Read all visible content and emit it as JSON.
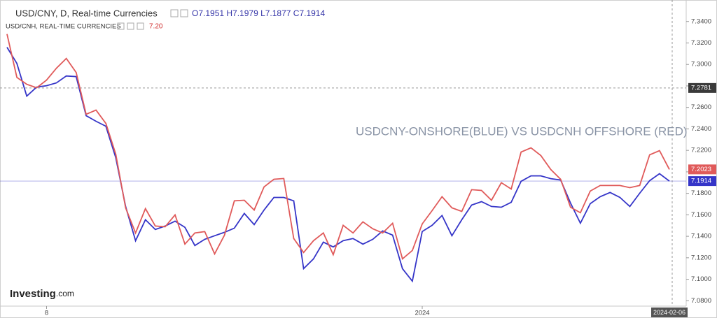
{
  "chart_data": {
    "type": "line",
    "annotation": "USDCNY-ONSHORE(BLUE) VS USDCNH OFFSHORE (RED)",
    "logo": {
      "name": "Investing",
      "suffix": ".com"
    },
    "categories": [
      null,
      null,
      null,
      null,
      "8",
      null,
      null,
      null,
      null,
      null,
      null,
      null,
      null,
      null,
      null,
      null,
      null,
      null,
      null,
      null,
      null,
      null,
      null,
      null,
      null,
      null,
      null,
      null,
      null,
      null,
      null,
      null,
      null,
      null,
      null,
      null,
      null,
      null,
      null,
      null,
      null,
      null,
      "2024",
      null,
      null,
      null,
      null,
      null,
      null,
      null,
      null,
      null,
      null,
      null,
      null,
      null,
      null,
      null,
      null,
      null,
      null,
      null,
      null,
      null,
      null,
      null,
      null,
      "2024-02-06"
    ],
    "series": [
      {
        "name": "USD/CNY, D, Real-time Currencies",
        "ohlc": "O7.1951  H7.1979  L7.1877  C7.1914",
        "color": "#3535c8",
        "values": [
          7.316,
          7.301,
          7.2705,
          7.2789,
          7.2802,
          7.2828,
          7.2893,
          7.2887,
          7.2523,
          7.2471,
          7.2425,
          7.2133,
          7.1678,
          7.1359,
          7.1554,
          7.1463,
          7.1496,
          7.1541,
          7.1483,
          7.1314,
          7.1372,
          7.1405,
          7.1437,
          7.1476,
          7.1613,
          7.1509,
          7.1645,
          7.1762,
          7.1762,
          7.173,
          7.1099,
          7.119,
          7.1346,
          7.1301,
          7.1359,
          7.1379,
          7.1327,
          7.1372,
          7.145,
          7.1411,
          7.1099,
          7.0982,
          7.1444,
          7.1502,
          7.1593,
          7.1405,
          7.1554,
          7.1691,
          7.1723,
          7.1678,
          7.1671,
          7.1717,
          7.1912,
          7.1963,
          7.1963,
          7.1937,
          7.1924,
          7.171,
          7.1522,
          7.1704,
          7.1769,
          7.1808,
          7.1762,
          7.1678,
          7.1801,
          7.1918,
          7.1983,
          7.1914
        ]
      },
      {
        "name": "USD/CNH, REAL-TIME CURRENCIES",
        "ohlc": "7.20",
        "color": "#e05a5a",
        "values": [
          7.3283,
          7.288,
          7.2815,
          7.2783,
          7.2854,
          7.2965,
          7.3056,
          7.2925,
          7.2536,
          7.2575,
          7.2451,
          7.2165,
          7.1665,
          7.1431,
          7.1658,
          7.1496,
          7.1489,
          7.16,
          7.1327,
          7.1431,
          7.1444,
          7.1236,
          7.1411,
          7.173,
          7.1736,
          7.1645,
          7.186,
          7.1931,
          7.1938,
          7.1379,
          7.1249,
          7.1359,
          7.1431,
          7.1229,
          7.1502,
          7.1431,
          7.1535,
          7.147,
          7.1431,
          7.1522,
          7.119,
          7.1268,
          7.1515,
          7.1639,
          7.1769,
          7.1665,
          7.1632,
          7.1834,
          7.1827,
          7.1736,
          7.1899,
          7.184,
          7.2185,
          7.2224,
          7.2152,
          7.2022,
          7.1931,
          7.1671,
          7.1619,
          7.1821,
          7.1873,
          7.1873,
          7.1873,
          7.1853,
          7.1873,
          7.2159,
          7.2198,
          7.2023
        ]
      }
    ],
    "crosshair": {
      "value": 7.2781,
      "label": "7.2781"
    },
    "ylim": [
      7.075,
      7.36
    ],
    "yticks": [
      {
        "value": 7.34,
        "label": "7.3400"
      },
      {
        "value": 7.32,
        "label": "7.3200"
      },
      {
        "value": 7.3,
        "label": "7.3000"
      },
      {
        "value": 7.28,
        "label": "7.2800"
      },
      {
        "value": 7.26,
        "label": "7.2600"
      },
      {
        "value": 7.24,
        "label": "7.2400"
      },
      {
        "value": 7.22,
        "label": "7.2200"
      },
      {
        "value": 7.2,
        "label": "7.2000"
      },
      {
        "value": 7.18,
        "label": "7.1800"
      },
      {
        "value": 7.16,
        "label": "7.1600"
      },
      {
        "value": 7.14,
        "label": "7.1400"
      },
      {
        "value": 7.12,
        "label": "7.1200"
      },
      {
        "value": 7.1,
        "label": "7.1000"
      },
      {
        "value": 7.08,
        "label": "7.0800"
      }
    ],
    "grid": false
  }
}
